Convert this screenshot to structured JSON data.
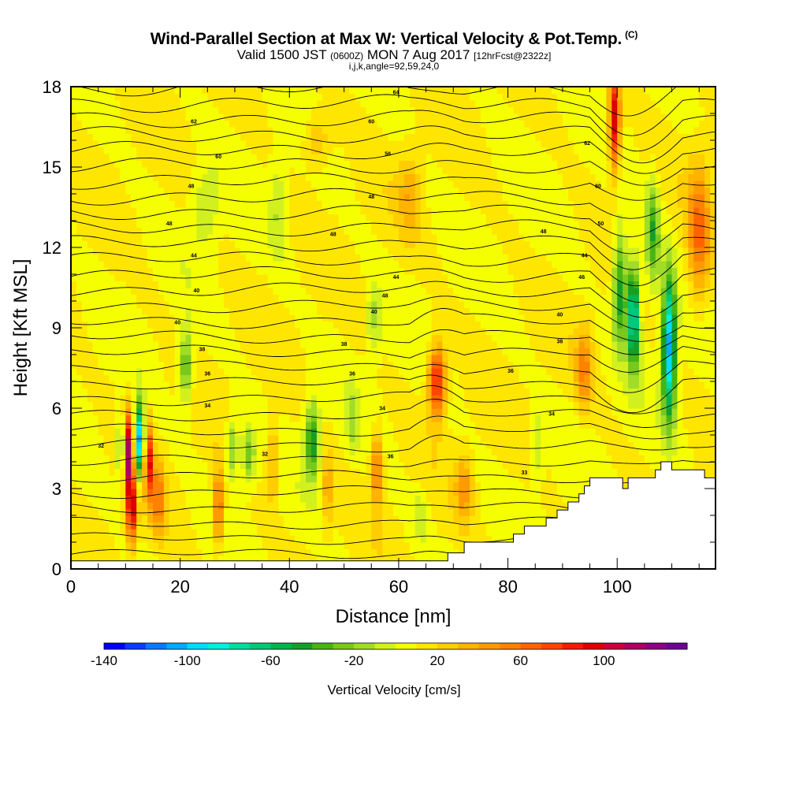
{
  "header": {
    "title": "Wind-Parallel Section at Max W: Vertical Velocity & Pot.Temp.",
    "copyright": "(C)",
    "valid_a": "Valid 1500 JST",
    "valid_z": "(0600Z)",
    "valid_b": "MON 7 Aug 2017",
    "fcst": "[12hrFcst@2322z]",
    "params": "i,j,k,angle=92,59,24,0"
  },
  "chart_data": {
    "type": "heatmap",
    "xlabel": "Distance [nm]",
    "ylabel": "Height [Kft MSL]",
    "xlim": [
      0,
      118
    ],
    "ylim": [
      0,
      18
    ],
    "x_ticks": [
      0,
      20,
      40,
      60,
      80,
      100
    ],
    "y_ticks": [
      0,
      3,
      6,
      9,
      12,
      15,
      18
    ],
    "background_value": 10,
    "colorbar": {
      "label": "Vertical Velocity [cm/s]",
      "ticks": [
        -140,
        -100,
        -60,
        -20,
        20,
        60,
        100
      ],
      "levels": [
        -140,
        -130,
        -120,
        -110,
        -100,
        -90,
        -80,
        -70,
        -60,
        -50,
        -40,
        -30,
        -20,
        -10,
        0,
        10,
        20,
        30,
        40,
        50,
        60,
        70,
        80,
        90,
        100,
        110,
        120,
        130
      ],
      "colors": [
        "#0000ff",
        "#0a3cff",
        "#0a78ff",
        "#00aaff",
        "#00dcff",
        "#00f0e0",
        "#00dca0",
        "#00c878",
        "#00b450",
        "#14a028",
        "#46b414",
        "#78c81e",
        "#a0dc28",
        "#d2f01e",
        "#f5ff00",
        "#ffe600",
        "#ffcd00",
        "#ffb400",
        "#ff9b00",
        "#ff8200",
        "#ff6400",
        "#ff4600",
        "#f01e00",
        "#dc0000",
        "#c8003c",
        "#aa0064",
        "#8c0082",
        "#6e0096"
      ]
    },
    "w_features": [
      {
        "x": 10.5,
        "z": 4.3,
        "wx": 0.9,
        "wz": 1.6,
        "w": 100
      },
      {
        "x": 11.2,
        "z": 2.2,
        "wx": 0.9,
        "wz": 1.2,
        "w": 90
      },
      {
        "x": 9.2,
        "z": 4.5,
        "wx": 0.7,
        "wz": 1.2,
        "w": -60
      },
      {
        "x": 12.6,
        "z": 4.8,
        "wx": 0.9,
        "wz": 1.3,
        "w": -120
      },
      {
        "x": 14.2,
        "z": 4.0,
        "wx": 0.8,
        "wz": 1.5,
        "w": 80
      },
      {
        "x": 16.0,
        "z": 2.6,
        "wx": 1.2,
        "wz": 1.4,
        "w": 45
      },
      {
        "x": 21.0,
        "z": 7.6,
        "wx": 1.3,
        "wz": 1.4,
        "w": -45
      },
      {
        "x": 27.0,
        "z": 2.3,
        "wx": 1.0,
        "wz": 1.4,
        "w": 60
      },
      {
        "x": 29.5,
        "z": 4.5,
        "wx": 1.1,
        "wz": 1.2,
        "w": -35
      },
      {
        "x": 32.5,
        "z": 4.3,
        "wx": 1.2,
        "wz": 1.0,
        "w": -40
      },
      {
        "x": 37.0,
        "z": 4.0,
        "wx": 1.2,
        "wz": 1.6,
        "w": 30
      },
      {
        "x": 44.2,
        "z": 4.8,
        "wx": 1.3,
        "wz": 1.4,
        "w": -60
      },
      {
        "x": 47.0,
        "z": 3.0,
        "wx": 1.0,
        "wz": 1.5,
        "w": 30
      },
      {
        "x": 56.0,
        "z": 3.8,
        "wx": 1.0,
        "wz": 1.3,
        "w": 55
      },
      {
        "x": 51.5,
        "z": 5.5,
        "wx": 1.0,
        "wz": 1.3,
        "w": -20
      },
      {
        "x": 67.0,
        "z": 7.0,
        "wx": 1.5,
        "wz": 1.3,
        "w": 85
      },
      {
        "x": 64.0,
        "z": 2.0,
        "wx": 1.5,
        "wz": 0.9,
        "w": -20
      },
      {
        "x": 72.0,
        "z": 3.0,
        "wx": 1.5,
        "wz": 1.2,
        "w": 35
      },
      {
        "x": 85.5,
        "z": 4.5,
        "wx": 1.0,
        "wz": 1.3,
        "w": -20
      },
      {
        "x": 99.5,
        "z": 16.8,
        "wx": 1.0,
        "wz": 1.8,
        "w": 95
      },
      {
        "x": 100.5,
        "z": 10.5,
        "wx": 1.3,
        "wz": 2.2,
        "w": -60
      },
      {
        "x": 103.0,
        "z": 9.5,
        "wx": 1.1,
        "wz": 1.9,
        "w": -95
      },
      {
        "x": 109.5,
        "z": 8.3,
        "wx": 1.2,
        "wz": 2.6,
        "w": -115
      },
      {
        "x": 106.5,
        "z": 12.5,
        "wx": 1.3,
        "wz": 2.0,
        "w": -50
      },
      {
        "x": 115.0,
        "z": 12.5,
        "wx": 2.0,
        "wz": 2.5,
        "w": 50
      },
      {
        "x": 94.0,
        "z": 7.5,
        "wx": 1.5,
        "wz": 1.5,
        "w": 40
      },
      {
        "x": 24.5,
        "z": 13.5,
        "wx": 2.5,
        "wz": 1.5,
        "w": -20
      },
      {
        "x": 38.0,
        "z": 13.5,
        "wx": 1.5,
        "wz": 1.8,
        "w": -20
      },
      {
        "x": 55.5,
        "z": 9.3,
        "wx": 1.5,
        "wz": 1.2,
        "w": -25
      },
      {
        "x": 45.0,
        "z": 16.0,
        "wx": 2.5,
        "wz": 1.0,
        "w": 25
      },
      {
        "x": 62.0,
        "z": 14.0,
        "wx": 2.0,
        "wz": 1.5,
        "w": 25
      }
    ],
    "isentropes": {
      "count": 31,
      "labels": [
        {
          "text": "62",
          "x": 22.5,
          "z": 16.7
        },
        {
          "text": "60",
          "x": 27.0,
          "z": 15.4
        },
        {
          "text": "48",
          "x": 22.0,
          "z": 14.3
        },
        {
          "text": "48",
          "x": 18.0,
          "z": 12.9
        },
        {
          "text": "44",
          "x": 22.5,
          "z": 11.7
        },
        {
          "text": "40",
          "x": 23.0,
          "z": 10.4
        },
        {
          "text": "40",
          "x": 19.5,
          "z": 9.2
        },
        {
          "text": "38",
          "x": 24.0,
          "z": 8.2
        },
        {
          "text": "36",
          "x": 25.0,
          "z": 7.3
        },
        {
          "text": "34",
          "x": 25.0,
          "z": 6.1
        },
        {
          "text": "32",
          "x": 5.5,
          "z": 4.6
        },
        {
          "text": "32",
          "x": 35.5,
          "z": 4.3
        },
        {
          "text": "64",
          "x": 59.5,
          "z": 17.8
        },
        {
          "text": "60",
          "x": 55.0,
          "z": 16.7
        },
        {
          "text": "56",
          "x": 58.0,
          "z": 15.5
        },
        {
          "text": "48",
          "x": 55.0,
          "z": 13.9
        },
        {
          "text": "48",
          "x": 48.0,
          "z": 12.5
        },
        {
          "text": "44",
          "x": 59.5,
          "z": 10.9
        },
        {
          "text": "48",
          "x": 57.5,
          "z": 10.2
        },
        {
          "text": "40",
          "x": 55.5,
          "z": 9.6
        },
        {
          "text": "38",
          "x": 50.0,
          "z": 8.4
        },
        {
          "text": "36",
          "x": 51.5,
          "z": 7.3
        },
        {
          "text": "34",
          "x": 57.0,
          "z": 6.0
        },
        {
          "text": "36",
          "x": 58.5,
          "z": 4.2
        },
        {
          "text": "36",
          "x": 80.5,
          "z": 7.4
        },
        {
          "text": "34",
          "x": 88.0,
          "z": 5.8
        },
        {
          "text": "33",
          "x": 83.0,
          "z": 3.6
        },
        {
          "text": "48",
          "x": 86.5,
          "z": 12.6
        },
        {
          "text": "44",
          "x": 94.0,
          "z": 11.7
        },
        {
          "text": "46",
          "x": 93.5,
          "z": 10.9
        },
        {
          "text": "40",
          "x": 89.5,
          "z": 9.5
        },
        {
          "text": "38",
          "x": 89.5,
          "z": 8.5
        },
        {
          "text": "62",
          "x": 94.5,
          "z": 15.9
        },
        {
          "text": "60",
          "x": 96.5,
          "z": 14.3
        },
        {
          "text": "50",
          "x": 97.0,
          "z": 12.9
        }
      ]
    },
    "terrain": [
      [
        0,
        0.3
      ],
      [
        69,
        0.3
      ],
      [
        69,
        0.6
      ],
      [
        72,
        0.6
      ],
      [
        72,
        1.0
      ],
      [
        81,
        1.0
      ],
      [
        81,
        1.3
      ],
      [
        83,
        1.3
      ],
      [
        83,
        1.6
      ],
      [
        87,
        1.6
      ],
      [
        87,
        1.9
      ],
      [
        89,
        1.9
      ],
      [
        89,
        2.2
      ],
      [
        91,
        2.2
      ],
      [
        91,
        2.5
      ],
      [
        93,
        2.5
      ],
      [
        93,
        2.8
      ],
      [
        94,
        2.8
      ],
      [
        94,
        3.1
      ],
      [
        95,
        3.1
      ],
      [
        95,
        3.4
      ],
      [
        101,
        3.4
      ],
      [
        101,
        3.0
      ],
      [
        102,
        3.0
      ],
      [
        102,
        3.4
      ],
      [
        107,
        3.4
      ],
      [
        107,
        3.7
      ],
      [
        108,
        3.7
      ],
      [
        108,
        4.0
      ],
      [
        110,
        4.0
      ],
      [
        110,
        3.7
      ],
      [
        116,
        3.7
      ],
      [
        116,
        3.4
      ],
      [
        118,
        3.4
      ]
    ]
  }
}
